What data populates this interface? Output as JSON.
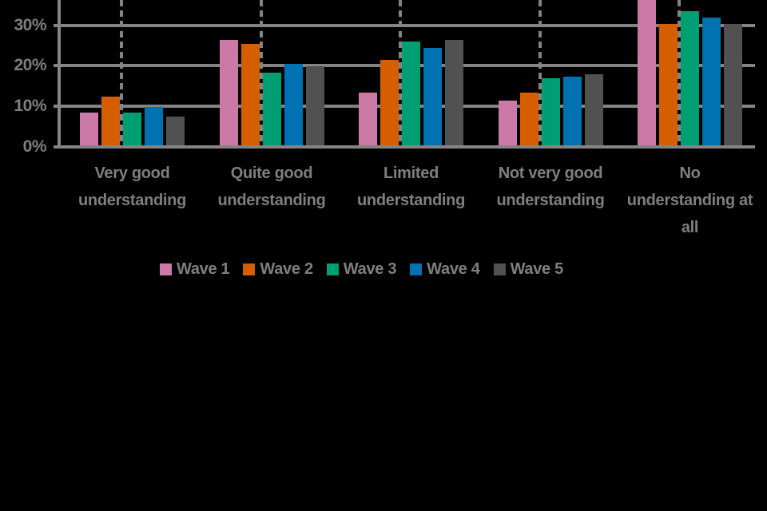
{
  "chart_data": {
    "type": "bar",
    "title": "",
    "xlabel": "",
    "ylabel": "",
    "categories": [
      "Very good understanding",
      "Quite good understanding",
      "Limited understanding",
      "Not very good understanding",
      "No understanding at all"
    ],
    "category_label_lines": [
      [
        "Very good",
        "understanding"
      ],
      [
        "Quite good",
        "understanding"
      ],
      [
        "Limited",
        "understanding"
      ],
      [
        "Not very good",
        "understanding"
      ],
      [
        "No",
        "understanding at",
        "all"
      ]
    ],
    "series": [
      {
        "name": "Wave 1",
        "color": "#CC79A7",
        "values": [
          8,
          26,
          13,
          11,
          40
        ]
      },
      {
        "name": "Wave 2",
        "color": "#D55E00",
        "values": [
          12,
          25,
          21,
          13,
          30
        ]
      },
      {
        "name": "Wave 3",
        "color": "#009E73",
        "values": [
          8,
          18,
          25.5,
          16.5,
          33
        ]
      },
      {
        "name": "Wave 4",
        "color": "#0072B2",
        "values": [
          9.5,
          20,
          24,
          17,
          31.5
        ]
      },
      {
        "name": "Wave 5",
        "color": "#515151",
        "values": [
          7,
          19.5,
          26,
          17.5,
          30
        ]
      }
    ],
    "y_tick_labels": [
      "0%",
      "10%",
      "20%",
      "30%"
    ],
    "y_tick_values": [
      0,
      10,
      20,
      30
    ],
    "ylim_visible": [
      0,
      36
    ],
    "grid": "horizontal solid gray lines; dashed vertical separator per category group",
    "legend_position": "bottom-center",
    "annotations": [
      "Chart is cropped at the top edge of the image; the Wave 1 bar in 'No understanding at all' extends beyond the visible area (>36%, plotted here as an estimated 40%)."
    ],
    "colors": {
      "text": "#7f7f7f",
      "lines": "#848484",
      "background": "#000000"
    }
  }
}
